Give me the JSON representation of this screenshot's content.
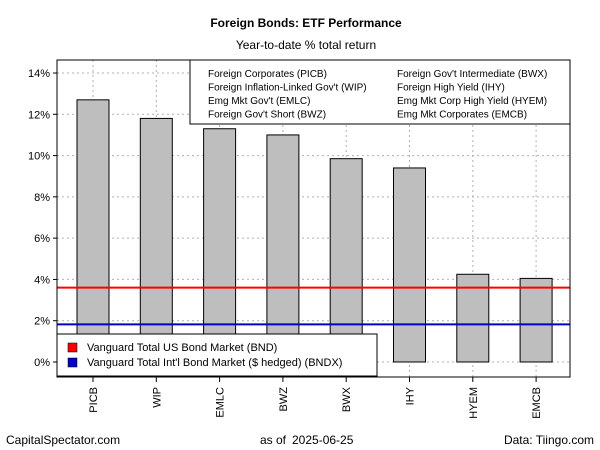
{
  "chart_data": {
    "type": "bar",
    "title": "Foreign Bonds: ETF Performance",
    "subtitle": "Year-to-date % total return",
    "categories": [
      "PICB",
      "WIP",
      "EMLC",
      "BWZ",
      "BWX",
      "IHY",
      "HYEM",
      "EMCB"
    ],
    "values": [
      12.7,
      11.8,
      11.3,
      11.0,
      9.85,
      9.4,
      4.25,
      4.05
    ],
    "ylim": [
      0,
      14
    ],
    "yticks": [
      0,
      2,
      4,
      6,
      8,
      10,
      12,
      14
    ],
    "ytick_labels": [
      "0%",
      "2%",
      "4%",
      "6%",
      "8%",
      "10%",
      "12%",
      "14%"
    ],
    "grid": true,
    "bar_color": "#bebebe",
    "reference_lines": [
      {
        "label": "Vanguard Total US Bond Market (BND)",
        "value": 3.6,
        "color": "#ff0000"
      },
      {
        "label": "Vanguard Total Int'l Bond Market ($ hedged) (BNDX)",
        "value": 1.82,
        "color": "#0000cd"
      }
    ],
    "legend_top": [
      "Foreign Corporates (PICB)",
      "Foreign Inflation-Linked Gov't (WIP)",
      "Emg Mkt Gov't (EMLC)",
      "Foreign Gov't Short (BWZ)",
      "Foreign Gov't Intermediate (BWX)",
      "Foreign High Yield (IHY)",
      "Emg Mkt Corp High Yield (HYEM)",
      "Emg Mkt Corporates (EMCB)"
    ],
    "legend_top_position": "top-right",
    "legend_lines_position": "bottom-left"
  },
  "footer": {
    "left": "CapitalSpectator.com",
    "center_prefix": "as of",
    "center_date": "2025-06-25",
    "right": "Data: Tiingo.com"
  }
}
